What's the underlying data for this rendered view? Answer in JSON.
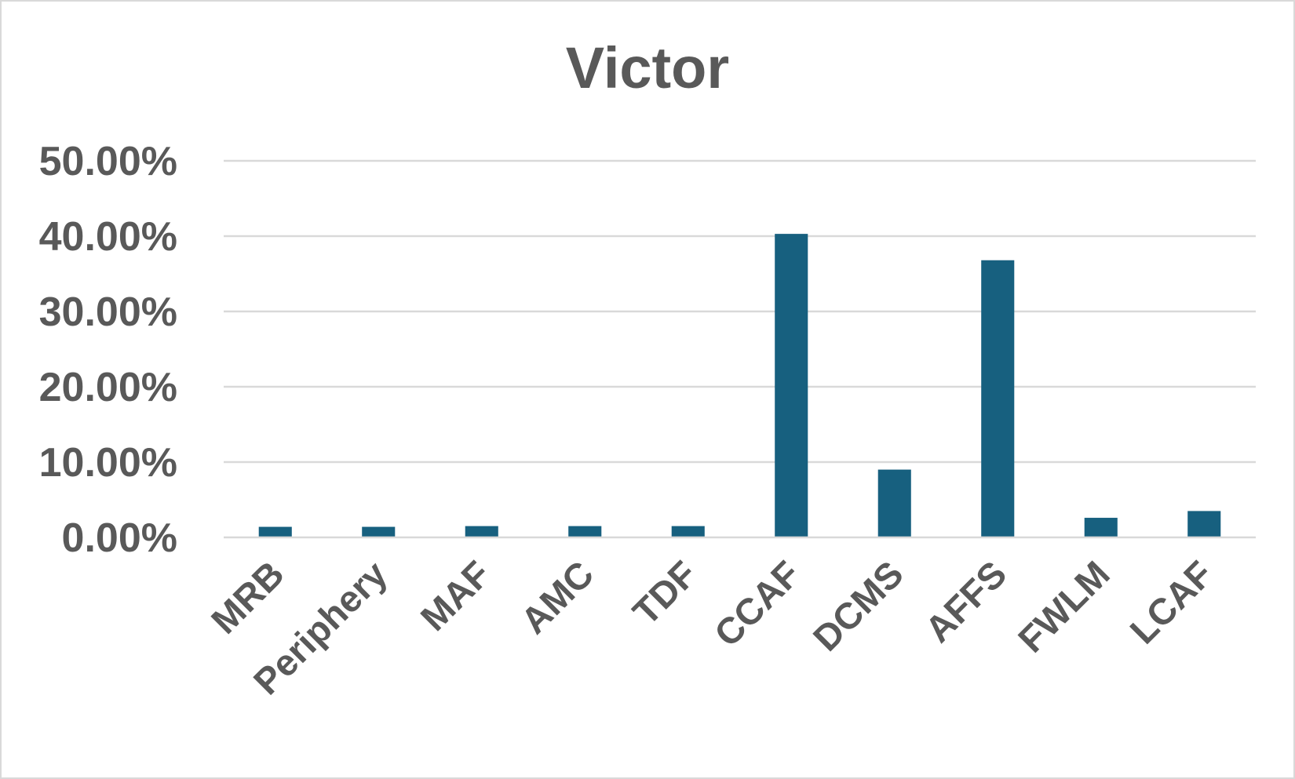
{
  "chart_data": {
    "type": "bar",
    "title": "Victor",
    "xlabel": "",
    "ylabel": "",
    "categories": [
      "MRB",
      "Periphery",
      "MAF",
      "AMC",
      "TDF",
      "CCAF",
      "DCMS",
      "AFFS",
      "FWLM",
      "LCAF"
    ],
    "values": [
      1.4,
      1.4,
      1.5,
      1.5,
      1.5,
      40.3,
      9.0,
      36.8,
      2.6,
      3.5
    ],
    "ylim": [
      0,
      50
    ],
    "yticks": [
      0,
      10,
      20,
      30,
      40,
      50
    ],
    "ytick_labels": [
      "0.00%",
      "10.00%",
      "20.00%",
      "30.00%",
      "40.00%",
      "50.00%"
    ],
    "grid": true,
    "legend": "none",
    "bar_color": "#17607f"
  }
}
